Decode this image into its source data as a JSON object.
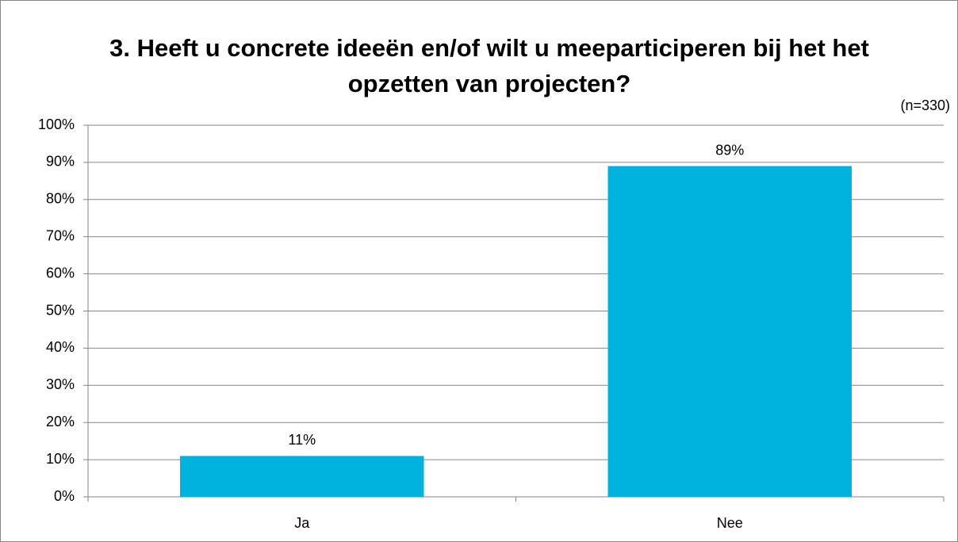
{
  "chart_data": {
    "type": "bar",
    "title": "3. Heeft u concrete ideeën en/of wilt u meeparticiperen bij het het opzetten van projecten?",
    "annotation": "(n=330)",
    "categories": [
      "Ja",
      "Nee"
    ],
    "values": [
      11,
      89
    ],
    "value_labels": [
      "11%",
      "89%"
    ],
    "color": "#00b2de",
    "ylim": [
      0,
      100
    ],
    "yticks": [
      {
        "value": 0,
        "label": "0%"
      },
      {
        "value": 10,
        "label": "10%"
      },
      {
        "value": 20,
        "label": "20%"
      },
      {
        "value": 30,
        "label": "30%"
      },
      {
        "value": 40,
        "label": "40%"
      },
      {
        "value": 50,
        "label": "50%"
      },
      {
        "value": 60,
        "label": "60%"
      },
      {
        "value": 70,
        "label": "70%"
      },
      {
        "value": 80,
        "label": "80%"
      },
      {
        "value": 90,
        "label": "90%"
      },
      {
        "value": 100,
        "label": "100%"
      }
    ],
    "grid": true
  }
}
